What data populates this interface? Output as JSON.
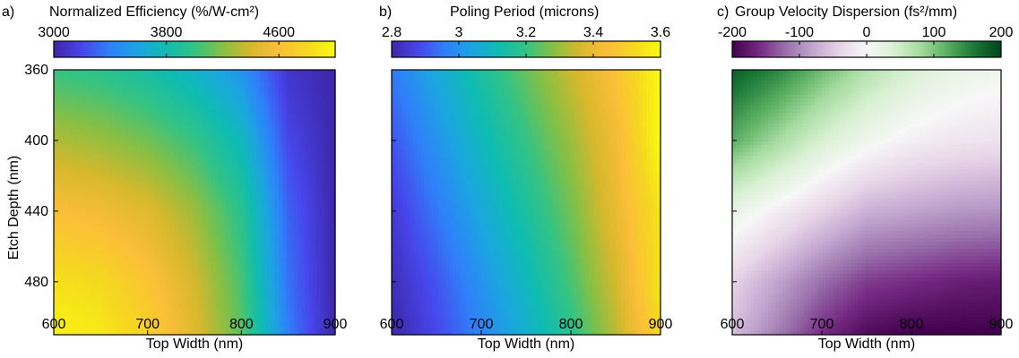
{
  "figure": {
    "y_axis_label": "Etch Depth (nm)",
    "x_axis_label": "Top Width (nm)"
  },
  "chart_data": [
    {
      "type": "heatmap",
      "panel_letter": "a)",
      "title": "Normalized Efficiency (%/W-cm²)",
      "xlabel": "Top Width (nm)",
      "ylabel": "Etch Depth (nm)",
      "xlim": [
        600,
        900
      ],
      "ylim": [
        360,
        510
      ],
      "y_reversed": true,
      "x_ticks": [
        600,
        700,
        800,
        900
      ],
      "y_ticks": [
        360,
        400,
        440,
        480
      ],
      "colorbar": {
        "range": [
          3000,
          5000
        ],
        "ticks": [
          3000,
          3800,
          4600
        ],
        "tick_labels": [
          "3000",
          "3800",
          "4600"
        ],
        "colormap": "parula",
        "stops": [
          "#3e26a8",
          "#4746eb",
          "#2f80fa",
          "#1ba6e0",
          "#0fbcb0",
          "#34c383",
          "#87bf44",
          "#d6b82c",
          "#fbbe38",
          "#f5d81f",
          "#f9fb0e"
        ]
      },
      "x": [
        600,
        650,
        700,
        750,
        800,
        850,
        900
      ],
      "y": [
        360,
        400,
        440,
        480,
        510
      ],
      "values": [
        [
          4000,
          3950,
          3850,
          3700,
          3500,
          3100,
          3000
        ],
        [
          4300,
          4250,
          4150,
          4000,
          3750,
          3200,
          3000
        ],
        [
          4600,
          4550,
          4450,
          4250,
          3950,
          3300,
          3000
        ],
        [
          4850,
          4800,
          4650,
          4400,
          4050,
          3350,
          3000
        ],
        [
          4950,
          4900,
          4750,
          4450,
          4100,
          3400,
          3000
        ]
      ]
    },
    {
      "type": "heatmap",
      "panel_letter": "b)",
      "title": "Poling Period (microns)",
      "xlabel": "Top Width (nm)",
      "ylabel": "",
      "xlim": [
        600,
        900
      ],
      "ylim": [
        360,
        510
      ],
      "y_reversed": true,
      "x_ticks": [
        600,
        700,
        800,
        900
      ],
      "y_ticks": [
        360,
        400,
        440,
        480
      ],
      "colorbar": {
        "range": [
          2.8,
          3.6
        ],
        "ticks": [
          2.8,
          3.0,
          3.2,
          3.4,
          3.6
        ],
        "tick_labels": [
          "2.8",
          "3",
          "3.2",
          "3.4",
          "3.6"
        ],
        "colormap": "parula",
        "stops": [
          "#3e26a8",
          "#4746eb",
          "#2f80fa",
          "#1ba6e0",
          "#0fbcb0",
          "#34c383",
          "#87bf44",
          "#d6b82c",
          "#fbbe38",
          "#f5d81f",
          "#f9fb0e"
        ]
      },
      "x": [
        600,
        650,
        700,
        750,
        800,
        850,
        900
      ],
      "y": [
        360,
        400,
        440,
        480,
        510
      ],
      "values": [
        [
          2.95,
          3.05,
          3.15,
          3.25,
          3.35,
          3.45,
          3.6
        ],
        [
          2.9,
          3.0,
          3.1,
          3.2,
          3.3,
          3.42,
          3.6
        ],
        [
          2.85,
          2.95,
          3.05,
          3.15,
          3.26,
          3.4,
          3.55
        ],
        [
          2.82,
          2.9,
          3.0,
          3.1,
          3.22,
          3.36,
          3.55
        ],
        [
          2.8,
          2.88,
          2.97,
          3.07,
          3.18,
          3.33,
          3.52
        ]
      ]
    },
    {
      "type": "heatmap",
      "panel_letter": "c)",
      "title": "Group Velocity Dispersion (fs²/mm)",
      "xlabel": "Top Width (nm)",
      "ylabel": "",
      "xlim": [
        600,
        900
      ],
      "ylim": [
        360,
        510
      ],
      "y_reversed": true,
      "x_ticks": [
        600,
        700,
        800,
        900
      ],
      "y_ticks": [
        360,
        400,
        440,
        480
      ],
      "colorbar": {
        "range": [
          -200,
          200
        ],
        "ticks": [
          -200,
          -100,
          0,
          100,
          200
        ],
        "tick_labels": [
          "-200",
          "-100",
          "0",
          "100",
          "200"
        ],
        "colormap": "PRGn",
        "stops": [
          "#40004b",
          "#762a83",
          "#9970ab",
          "#c2a5cf",
          "#e7d4e8",
          "#f7f7f7",
          "#d9f0d3",
          "#a6dba0",
          "#5aae61",
          "#1b7837",
          "#00441b"
        ]
      },
      "x": [
        600,
        650,
        700,
        750,
        800,
        850,
        900
      ],
      "y": [
        360,
        400,
        440,
        480,
        510
      ],
      "values": [
        [
          180,
          150,
          110,
          70,
          40,
          20,
          10
        ],
        [
          120,
          80,
          40,
          10,
          -10,
          -20,
          -25
        ],
        [
          20,
          -10,
          -40,
          -70,
          -80,
          -90,
          -95
        ],
        [
          -40,
          -80,
          -120,
          -150,
          -160,
          -170,
          -175
        ],
        [
          -60,
          -110,
          -160,
          -190,
          -200,
          -200,
          -200
        ]
      ]
    }
  ]
}
